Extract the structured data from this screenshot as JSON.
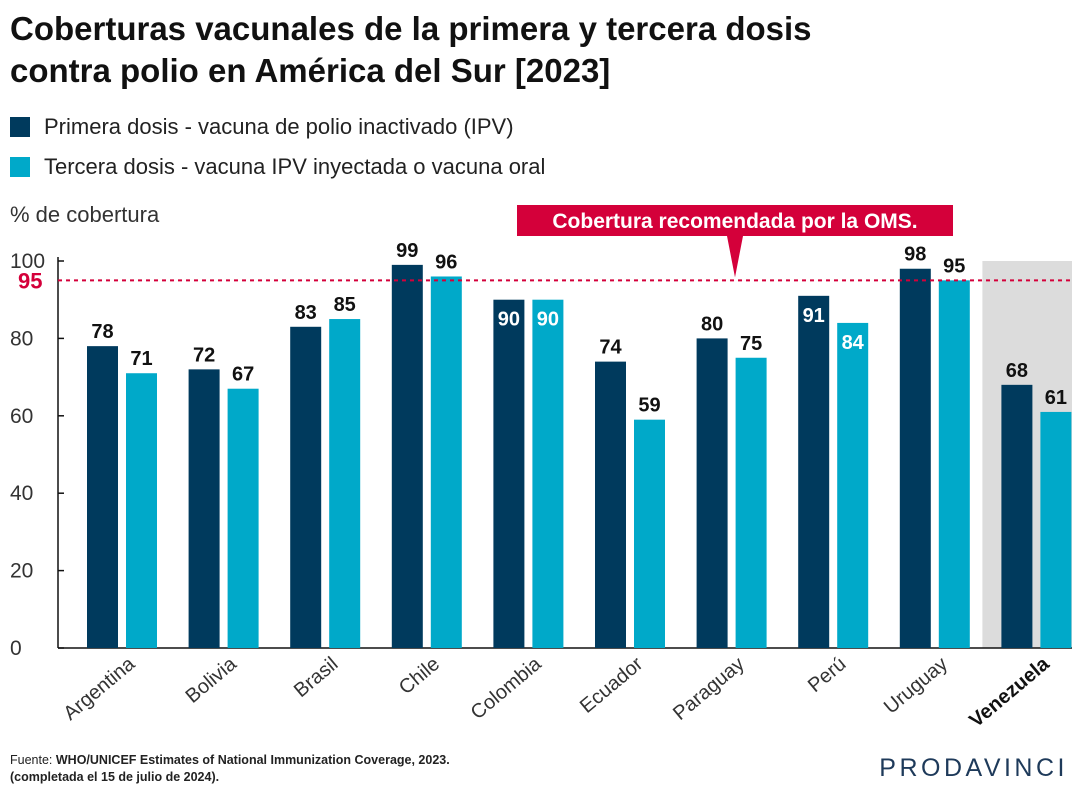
{
  "title_line1": "Coberturas vacunales de la primera y tercera dosis",
  "title_line2": "contra polio en América del Sur [2023]",
  "legend": [
    {
      "label": "Primera dosis - vacuna de polio inactivado (IPV)",
      "color": "#003a5d"
    },
    {
      "label": "Tercera dosis - vacuna IPV inyectada o vacuna oral",
      "color": "#00a9c9"
    }
  ],
  "source": {
    "prefix": "Fuente:",
    "text": "WHO/UNICEF Estimates of National Immunization Coverage, 2023.",
    "line2": "(completada el 15 de julio de 2024)."
  },
  "logo": "PRODAVINCI",
  "chart_data": {
    "type": "bar",
    "ylabel": "% de cobertura",
    "ylim": [
      0,
      100
    ],
    "yticks": [
      0,
      20,
      40,
      60,
      80,
      100
    ],
    "grid": false,
    "categories": [
      "Argentina",
      "Bolivia",
      "Brasil",
      "Chile",
      "Colombia",
      "Ecuador",
      "Paraguay",
      "Perú",
      "Uruguay",
      "Venezuela"
    ],
    "highlight_category": "Venezuela",
    "series": [
      {
        "name": "Primera dosis - vacuna de polio inactivado (IPV)",
        "color": "#003a5d",
        "values": [
          78,
          72,
          83,
          99,
          90,
          74,
          80,
          91,
          98,
          68
        ]
      },
      {
        "name": "Tercera dosis - vacuna IPV inyectada o vacuna oral",
        "color": "#00a9c9",
        "values": [
          71,
          67,
          85,
          96,
          90,
          59,
          75,
          84,
          95,
          61
        ]
      }
    ],
    "reference_line": {
      "value": 95,
      "label": "95",
      "annotation": "Cobertura recomendada por la OMS.",
      "color": "#d4003a"
    },
    "inside_labels": [
      [
        false,
        false,
        false,
        false,
        true,
        false,
        false,
        true,
        false,
        false
      ],
      [
        false,
        false,
        false,
        false,
        true,
        false,
        false,
        true,
        false,
        false
      ]
    ],
    "highlight_color": "#dcdcdc"
  }
}
